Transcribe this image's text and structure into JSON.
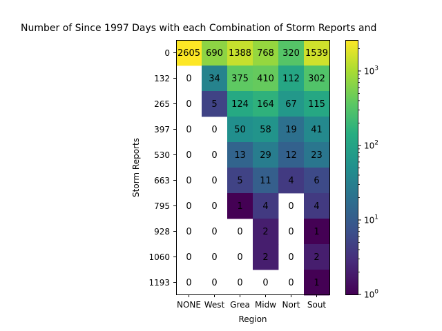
{
  "chart_data": {
    "type": "heatmap",
    "title": "Number of Since 1997 Days with each Combination of Storm Reports and",
    "xlabel": "Region",
    "ylabel": "Storm Reports",
    "x_tick_labels": [
      "NONE",
      "West",
      "Grea",
      "Midw",
      "Nort",
      "Sout"
    ],
    "y_tick_labels": [
      "0",
      "132",
      "265",
      "397",
      "530",
      "663",
      "795",
      "928",
      "1060",
      "1193"
    ],
    "values": [
      [
        2605,
        690,
        1388,
        768,
        320,
        1539
      ],
      [
        0,
        34,
        375,
        410,
        112,
        302
      ],
      [
        0,
        5,
        124,
        164,
        67,
        115
      ],
      [
        0,
        0,
        50,
        58,
        19,
        41
      ],
      [
        0,
        0,
        13,
        29,
        12,
        23
      ],
      [
        0,
        0,
        5,
        11,
        4,
        6
      ],
      [
        0,
        0,
        1,
        4,
        0,
        4
      ],
      [
        0,
        0,
        0,
        2,
        0,
        1
      ],
      [
        0,
        0,
        0,
        2,
        0,
        2
      ],
      [
        0,
        0,
        0,
        0,
        0,
        1
      ]
    ],
    "color_scale": "log",
    "colormap": "viridis",
    "vmin": 1,
    "vmax": 2605,
    "zero_cells": "blank (white)",
    "colorbar": {
      "ticks": [
        1,
        10,
        100,
        1000
      ],
      "tick_labels": [
        "10^0",
        "10^1",
        "10^2",
        "10^3"
      ]
    },
    "grid": false,
    "legend": "colorbar at right"
  }
}
